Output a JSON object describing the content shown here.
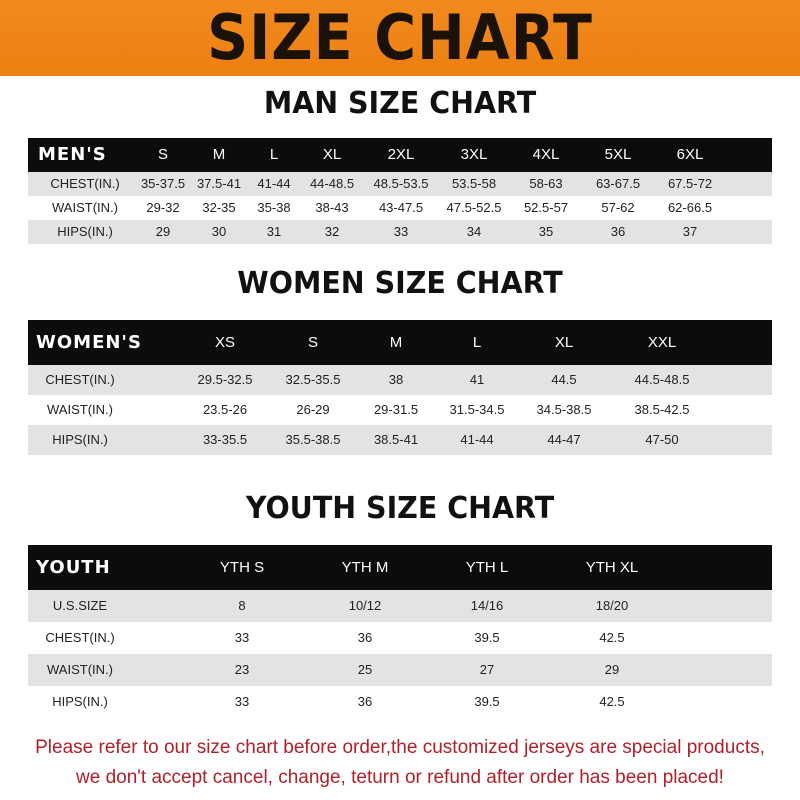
{
  "title": "SIZE CHART",
  "colors": {
    "banner": "#ef8418",
    "header": "#0e0b0b",
    "stripe": "#e3e3e3",
    "notice": "#b0202a"
  },
  "men": {
    "title": "MAN SIZE CHART",
    "header": [
      "MEN'S",
      "S",
      "M",
      "L",
      "XL",
      "2XL",
      "3XL",
      "4XL",
      "5XL",
      "6XL"
    ],
    "rows": [
      [
        "CHEST(IN.)",
        "35-37.5",
        "37.5-41",
        "41-44",
        "44-48.5",
        "48.5-53.5",
        "53.5-58",
        "58-63",
        "63-67.5",
        "67.5-72"
      ],
      [
        "WAIST(IN.)",
        "29-32",
        "32-35",
        "35-38",
        "38-43",
        "43-47.5",
        "47.5-52.5",
        "52.5-57",
        "57-62",
        "62-66.5"
      ],
      [
        "HIPS(IN.)",
        "29",
        "30",
        "31",
        "32",
        "33",
        "34",
        "35",
        "36",
        "37"
      ]
    ]
  },
  "women": {
    "title": "WOMEN SIZE CHART",
    "header": [
      "WOMEN'S",
      "XS",
      "S",
      "M",
      "L",
      "XL",
      "XXL"
    ],
    "rows": [
      [
        "CHEST(IN.)",
        "29.5-32.5",
        "32.5-35.5",
        "38",
        "41",
        "44.5",
        "44.5-48.5"
      ],
      [
        "WAIST(IN.)",
        "23.5-26",
        "26-29",
        "29-31.5",
        "31.5-34.5",
        "34.5-38.5",
        "38.5-42.5"
      ],
      [
        "HIPS(IN.)",
        "33-35.5",
        "35.5-38.5",
        "38.5-41",
        "41-44",
        "44-47",
        "47-50"
      ]
    ]
  },
  "youth": {
    "title": "YOUTH SIZE CHART",
    "header": [
      "YOUTH",
      "YTH S",
      "YTH M",
      "YTH L",
      "YTH XL"
    ],
    "rows": [
      [
        "U.S.SIZE",
        "8",
        "10/12",
        "14/16",
        "18/20"
      ],
      [
        "CHEST(IN.)",
        "33",
        "36",
        "39.5",
        "42.5"
      ],
      [
        "WAIST(IN.)",
        "23",
        "25",
        "27",
        "29"
      ],
      [
        "HIPS(IN.)",
        "33",
        "36",
        "39.5",
        "42.5"
      ]
    ]
  },
  "notice": {
    "line1": "Please refer to our size chart before order,the customized jerseys are special products,",
    "line2": "we don't accept cancel, change, teturn or refund after order has been placed!"
  }
}
